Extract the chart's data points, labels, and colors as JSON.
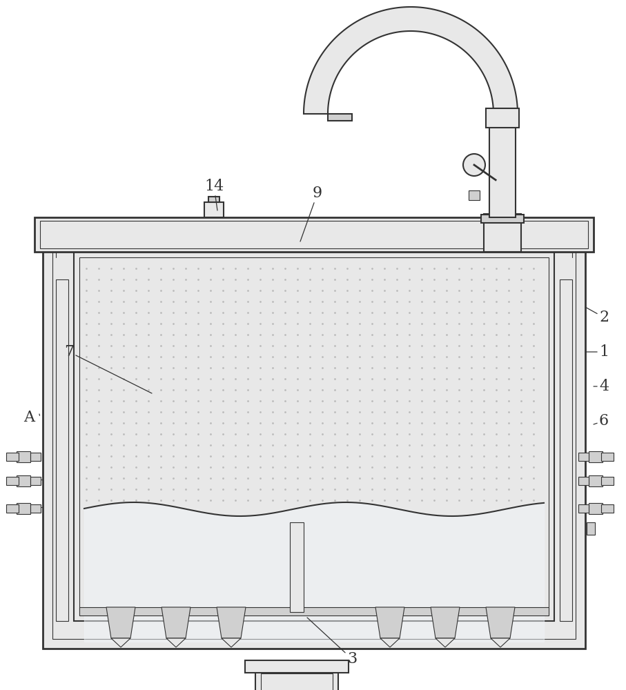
{
  "bg_color": "#ffffff",
  "line_color": "#333333",
  "lw": 1.5,
  "lw_thin": 0.8,
  "lw_thick": 2.0,
  "gray_light": "#e8e8e8",
  "gray_mid": "#d0d0d0",
  "gray_dark": "#a0a0a0",
  "dot_color": "#bbbbbb",
  "label_fontsize": 16
}
